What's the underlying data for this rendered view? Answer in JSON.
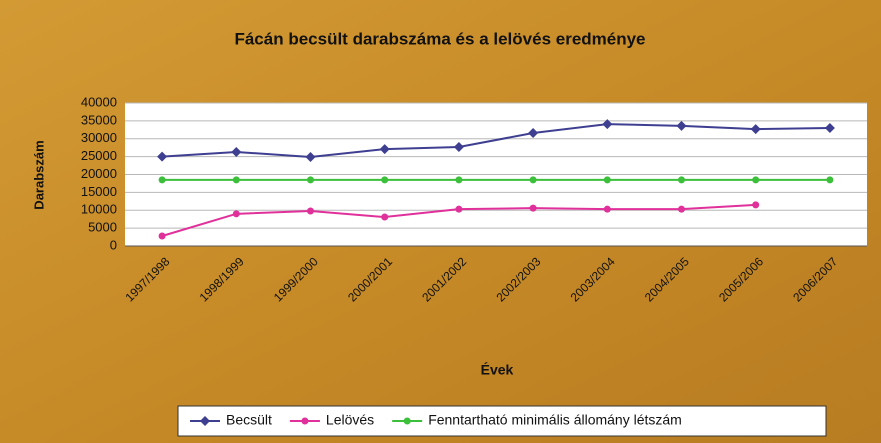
{
  "chart_data": {
    "type": "line",
    "title": "Fácán becsült darabszáma és a lelövés eredménye",
    "x_label": "Évek",
    "y_label": "Darabszám",
    "categories": [
      "1997/1998",
      "1998/1999",
      "1999/2000",
      "2000/2001",
      "2001/2002",
      "2002/2003",
      "2003/2004",
      "2004/2005",
      "2005/2006",
      "2006/2007"
    ],
    "series": [
      {
        "name": "Becsült",
        "color": "#3f3f92",
        "values": [
          25000,
          26300,
          24900,
          27100,
          27700,
          31600,
          34100,
          33600,
          32700,
          33000
        ]
      },
      {
        "name": "Lelövés",
        "color": "#e0309a",
        "values": [
          2800,
          9000,
          9800,
          8100,
          10300,
          10600,
          10300,
          10300,
          11500,
          null
        ]
      },
      {
        "name": "Fenntartható minimális állomány létszám",
        "color": "#3cc03c",
        "values": [
          18500,
          18500,
          18500,
          18500,
          18500,
          18500,
          18500,
          18500,
          18500,
          18500
        ]
      }
    ],
    "ylim": [
      0,
      40000
    ],
    "yticks": [
      0,
      5000,
      10000,
      15000,
      20000,
      25000,
      30000,
      35000,
      40000
    ],
    "grid": true,
    "legend": "bottom"
  }
}
